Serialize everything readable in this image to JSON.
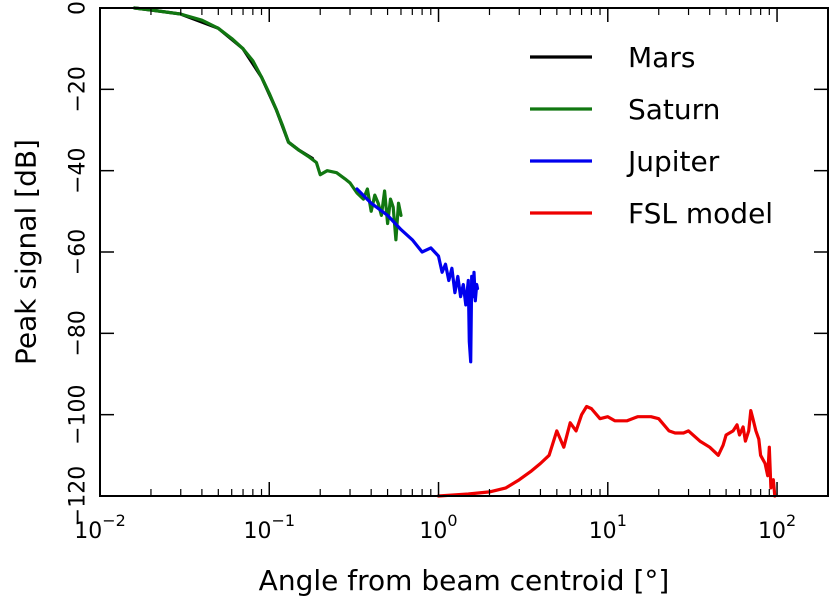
{
  "chart_data": {
    "type": "line",
    "title": "",
    "xlabel": "Angle from beam centroid [°]",
    "ylabel": "Peak signal [dB]",
    "xscale": "log",
    "xlim": [
      0.01,
      200
    ],
    "ylim": [
      -120,
      0
    ],
    "x_tick_labels": [
      {
        "value": 0.01,
        "base": "10",
        "exp": "−2"
      },
      {
        "value": 0.1,
        "base": "10",
        "exp": "−1"
      },
      {
        "value": 1,
        "base": "10",
        "exp": "0"
      },
      {
        "value": 10,
        "base": "10",
        "exp": "1"
      },
      {
        "value": 100,
        "base": "10",
        "exp": "2"
      }
    ],
    "y_ticks": [
      0,
      -20,
      -40,
      -60,
      -80,
      -100,
      -120
    ],
    "y_tick_labels": [
      "0",
      "−20",
      "−40",
      "−60",
      "−80",
      "−100",
      "−120"
    ],
    "grid": false,
    "legend_position": "top-right",
    "series": [
      {
        "name": "Mars",
        "color": "#000000",
        "x": [
          0.016,
          0.02,
          0.03,
          0.05,
          0.07,
          0.09,
          0.11,
          0.13,
          0.15,
          0.18
        ],
        "y": [
          0,
          -0.5,
          -1.5,
          -5,
          -10,
          -17,
          -25,
          -33,
          -35,
          -37
        ]
      },
      {
        "name": "Saturn",
        "color": "#117711",
        "x": [
          0.016,
          0.02,
          0.03,
          0.04,
          0.05,
          0.06,
          0.07,
          0.08,
          0.09,
          0.1,
          0.11,
          0.12,
          0.13,
          0.15,
          0.17,
          0.19,
          0.2,
          0.22,
          0.25,
          0.28,
          0.3,
          0.33,
          0.36,
          0.38,
          0.4,
          0.42,
          0.44,
          0.46,
          0.48,
          0.5,
          0.52,
          0.54,
          0.56,
          0.58,
          0.6
        ],
        "y": [
          0,
          -0.5,
          -1.5,
          -3,
          -5,
          -7.5,
          -10,
          -13,
          -17,
          -21,
          -25,
          -29,
          -33,
          -35,
          -36.5,
          -38,
          -41,
          -40,
          -40.5,
          -42,
          -43,
          -45.5,
          -47,
          -44.5,
          -50,
          -46,
          -48,
          -51,
          -45,
          -53,
          -47,
          -49,
          -57,
          -48,
          -51
        ]
      },
      {
        "name": "Jupiter",
        "color": "#0000ee",
        "x": [
          0.33,
          0.4,
          0.5,
          0.6,
          0.7,
          0.8,
          0.9,
          1.0,
          1.05,
          1.1,
          1.15,
          1.2,
          1.25,
          1.3,
          1.35,
          1.4,
          1.45,
          1.5,
          1.52,
          1.55,
          1.57,
          1.6,
          1.62,
          1.65,
          1.68,
          1.7
        ],
        "y": [
          -44.5,
          -48,
          -51,
          -54.5,
          -57,
          -60,
          -59,
          -61,
          -65,
          -63,
          -67,
          -64,
          -70,
          -66,
          -71,
          -68,
          -73,
          -67,
          -82,
          -87,
          -66,
          -71,
          -65,
          -72,
          -68,
          -69
        ]
      },
      {
        "name": "FSL model",
        "color": "#ee0000",
        "x": [
          1.0,
          1.5,
          2.0,
          2.5,
          3.0,
          3.5,
          4.0,
          4.5,
          5.0,
          5.5,
          6.0,
          6.5,
          7.0,
          7.5,
          8.0,
          9.0,
          10.0,
          11.0,
          13.0,
          15.0,
          18.0,
          20.0,
          23.0,
          25.0,
          28.0,
          30.0,
          35.0,
          40.0,
          45.0,
          48.0,
          50.0,
          55.0,
          58.0,
          60.0,
          63.0,
          65.0,
          68.0,
          70.0,
          72.0,
          75.0,
          78.0,
          80.0,
          85.0,
          88.0,
          90.0,
          92.0,
          95.0,
          97.0
        ],
        "y": [
          -120,
          -119.5,
          -119,
          -118,
          -116,
          -114,
          -112,
          -110,
          -104,
          -108,
          -102,
          -104,
          -100,
          -98,
          -98.5,
          -101,
          -100.5,
          -101.5,
          -101.5,
          -100.5,
          -100.5,
          -101,
          -104,
          -104.5,
          -104.5,
          -104,
          -106.5,
          -108,
          -110,
          -107.5,
          -105,
          -104,
          -102.5,
          -105,
          -103,
          -106.5,
          -104,
          -99,
          -101,
          -104,
          -106,
          -110,
          -112,
          -115,
          -108,
          -118,
          -116,
          -120
        ]
      }
    ]
  }
}
